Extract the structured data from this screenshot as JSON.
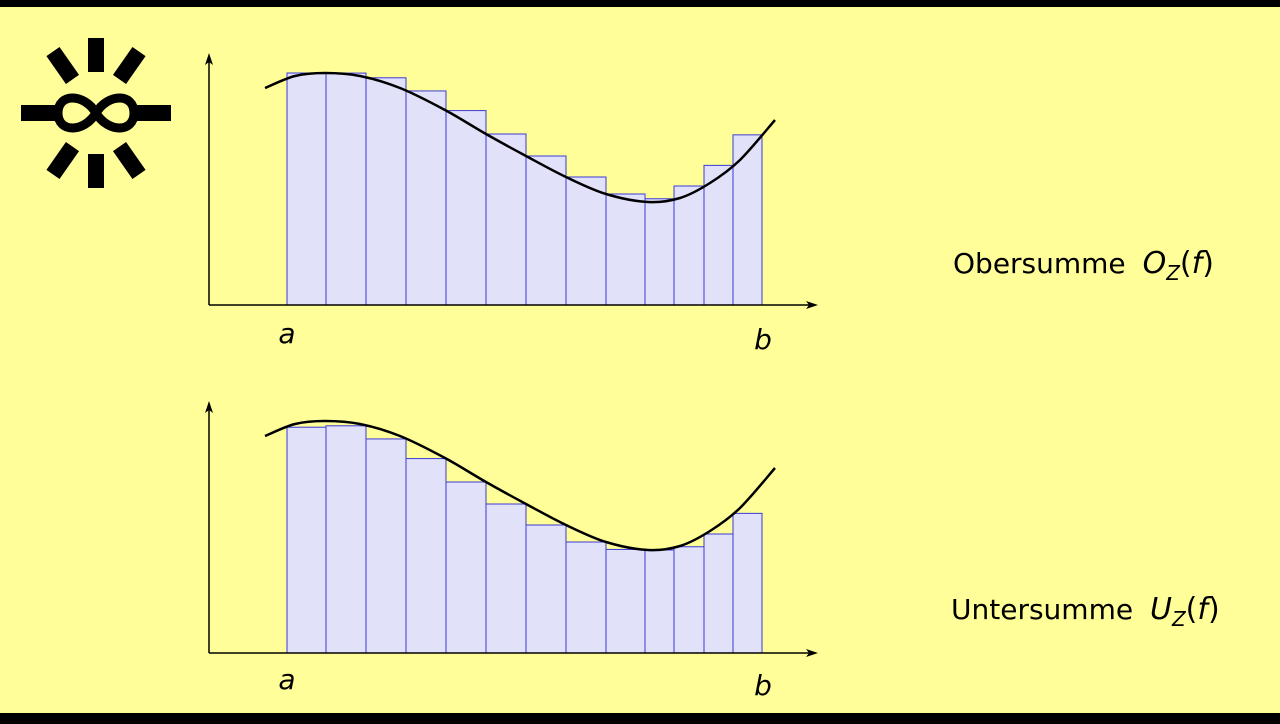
{
  "slide": {
    "background_color": "#fffe99",
    "frame_color": "#000000",
    "logo": {
      "icon": "sun-infinity-logo-icon"
    }
  },
  "upper_sum": {
    "label_word": "Obersumme",
    "label_symbol": "O",
    "label_subscript": "Z",
    "label_paren_open": "(",
    "label_arg": "f",
    "label_paren_close": ")",
    "tick_a": "a",
    "tick_b": "b"
  },
  "lower_sum": {
    "label_word": "Untersumme",
    "label_symbol": "U",
    "label_subscript": "Z",
    "label_paren_open": "(",
    "label_arg": "f",
    "label_paren_close": ")",
    "tick_a": "a",
    "tick_b": "b"
  },
  "style": {
    "bar_fill": "#e1e1fa",
    "bar_stroke": "#3b3bd6",
    "curve_color": "#000000",
    "axis_color": "#000000"
  }
}
